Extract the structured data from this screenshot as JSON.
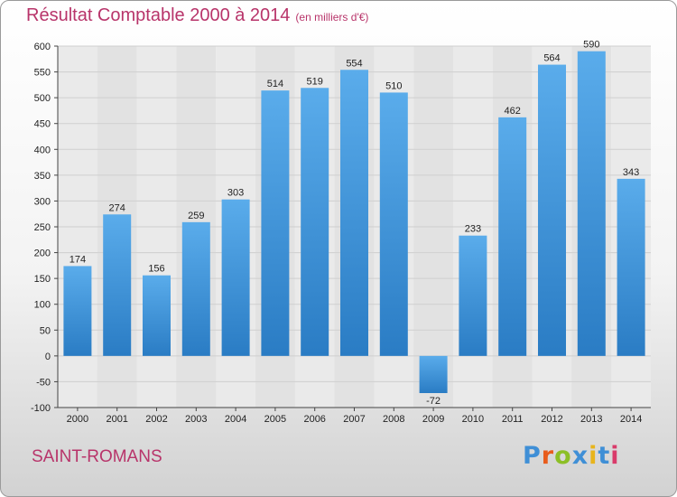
{
  "chart_data": {
    "type": "bar",
    "title": "Résultat Comptable 2000 à 2014",
    "subtitle": "(en milliers d'€)",
    "categories": [
      "2000",
      "2001",
      "2002",
      "2003",
      "2004",
      "2005",
      "2006",
      "2007",
      "2008",
      "2009",
      "2010",
      "2011",
      "2012",
      "2013",
      "2014"
    ],
    "values": [
      174,
      274,
      156,
      259,
      303,
      514,
      519,
      554,
      510,
      -72,
      233,
      462,
      564,
      590,
      343
    ],
    "ylim": [
      -100,
      600
    ],
    "yticks": [
      -100,
      -50,
      0,
      50,
      100,
      150,
      200,
      250,
      300,
      350,
      400,
      450,
      500,
      550,
      600
    ],
    "grid": true,
    "bar_color": "#3d95d9",
    "xlabel": "",
    "ylabel": ""
  },
  "footer": {
    "place_name": "SAINT-ROMANS",
    "logo_text": "Proxiti",
    "logo_colors": [
      "#3f8fd6",
      "#e85c1c",
      "#8cbf26",
      "#3f8fd6",
      "#e8b41c",
      "#3f8fd6",
      "#d93b6a"
    ]
  },
  "colors": {
    "accent": "#b8346a",
    "gridline": "#cfcfcf"
  }
}
